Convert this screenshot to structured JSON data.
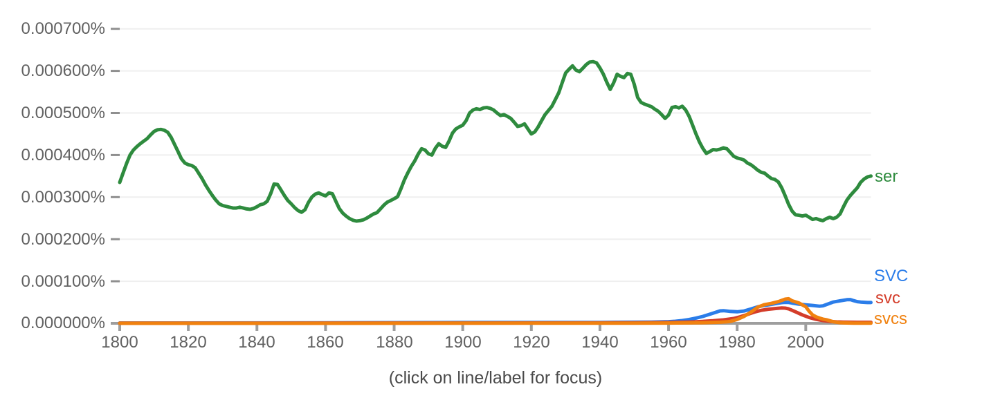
{
  "caption": "(click on line/label for focus)",
  "colors": {
    "background": "#ffffff",
    "gridline": "#efefef",
    "axis": "#9e9e9e",
    "tick_dash": "#8f8f8f",
    "axis_label": "#616161",
    "caption": "#4a4a4a"
  },
  "chart_data": {
    "type": "line",
    "title": "",
    "xlabel": "",
    "ylabel": "",
    "value_unit": "1e-6 percent (frequency %, axis shows 0.000000%–0.000700%)",
    "xlim": [
      1800,
      2019
    ],
    "ylim": [
      0,
      700
    ],
    "grid": true,
    "legend_position": "line-end-labels-right",
    "x_ticks": [
      "1800",
      "1820",
      "1840",
      "1860",
      "1880",
      "1900",
      "1920",
      "1940",
      "1960",
      "1980",
      "2000"
    ],
    "x_tick_years": [
      1800,
      1820,
      1840,
      1860,
      1880,
      1900,
      1920,
      1940,
      1960,
      1980,
      2000
    ],
    "y_ticks": [
      {
        "value": 700,
        "label": "0.000700%"
      },
      {
        "value": 600,
        "label": "0.000600%"
      },
      {
        "value": 500,
        "label": "0.000500%"
      },
      {
        "value": 400,
        "label": "0.000400%"
      },
      {
        "value": 300,
        "label": "0.000300%"
      },
      {
        "value": 200,
        "label": "0.000200%"
      },
      {
        "value": 100,
        "label": "0.000100%"
      },
      {
        "value": 0,
        "label": "0.000000%"
      }
    ],
    "series": [
      {
        "name": "ser",
        "label": "ser",
        "color": "#2e8b3e",
        "x_start": 1800,
        "x_step": 1,
        "values": [
          335,
          358,
          380,
          400,
          412,
          420,
          427,
          433,
          439,
          448,
          456,
          460,
          461,
          459,
          454,
          442,
          425,
          408,
          391,
          381,
          377,
          375,
          370,
          357,
          344,
          329,
          316,
          304,
          293,
          284,
          280,
          278,
          276,
          274,
          274,
          276,
          274,
          272,
          271,
          273,
          277,
          282,
          284,
          290,
          308,
          331,
          330,
          317,
          304,
          292,
          284,
          275,
          268,
          264,
          270,
          287,
          300,
          307,
          310,
          306,
          303,
          310,
          308,
          290,
          273,
          262,
          255,
          249,
          245,
          243,
          244,
          246,
          250,
          255,
          260,
          263,
          272,
          281,
          288,
          292,
          296,
          301,
          320,
          341,
          358,
          373,
          386,
          402,
          415,
          412,
          403,
          400,
          416,
          427,
          421,
          418,
          433,
          452,
          462,
          467,
          471,
          482,
          500,
          507,
          510,
          508,
          512,
          513,
          511,
          507,
          500,
          494,
          496,
          492,
          487,
          478,
          468,
          470,
          474,
          462,
          450,
          455,
          467,
          482,
          496,
          506,
          516,
          532,
          548,
          572,
          595,
          604,
          612,
          602,
          598,
          606,
          615,
          621,
          622,
          619,
          607,
          592,
          573,
          556,
          572,
          592,
          587,
          584,
          594,
          592,
          568,
          537,
          525,
          521,
          518,
          515,
          509,
          504,
          496,
          487,
          495,
          513,
          515,
          512,
          516,
          507,
          492,
          471,
          450,
          431,
          416,
          404,
          408,
          413,
          412,
          414,
          417,
          415,
          406,
          397,
          393,
          391,
          388,
          381,
          377,
          371,
          364,
          359,
          357,
          350,
          344,
          342,
          336,
          322,
          303,
          283,
          267,
          258,
          257,
          255,
          257,
          252,
          247,
          249,
          246,
          244,
          249,
          252,
          249,
          252,
          260,
          277,
          293,
          304,
          313,
          322,
          335,
          343,
          348,
          350
        ]
      },
      {
        "name": "SVC",
        "label": "SVC",
        "color": "#2b7de9",
        "points": [
          [
            1800,
            0.8
          ],
          [
            1840,
            1
          ],
          [
            1860,
            1.2
          ],
          [
            1880,
            1.6
          ],
          [
            1900,
            2
          ],
          [
            1920,
            2
          ],
          [
            1930,
            2.1
          ],
          [
            1940,
            2.2
          ],
          [
            1945,
            2.4
          ],
          [
            1950,
            2.6
          ],
          [
            1955,
            3
          ],
          [
            1958,
            3.5
          ],
          [
            1960,
            4
          ],
          [
            1962,
            5
          ],
          [
            1964,
            6.5
          ],
          [
            1966,
            9
          ],
          [
            1968,
            12.5
          ],
          [
            1970,
            16.5
          ],
          [
            1972,
            21.5
          ],
          [
            1974,
            27
          ],
          [
            1975,
            29.5
          ],
          [
            1976,
            30
          ],
          [
            1977,
            29.2
          ],
          [
            1978,
            28.2
          ],
          [
            1980,
            27.5
          ],
          [
            1982,
            29.2
          ],
          [
            1984,
            34
          ],
          [
            1986,
            39.2
          ],
          [
            1988,
            42.5
          ],
          [
            1990,
            45.2
          ],
          [
            1992,
            48
          ],
          [
            1993,
            49.2
          ],
          [
            1994,
            50
          ],
          [
            1995,
            49.6
          ],
          [
            1996,
            48.2
          ],
          [
            1998,
            45.5
          ],
          [
            2000,
            44
          ],
          [
            2002,
            42.5
          ],
          [
            2004,
            40.8
          ],
          [
            2005,
            41.5
          ],
          [
            2006,
            44.5
          ],
          [
            2008,
            50.5
          ],
          [
            2010,
            53.5
          ],
          [
            2012,
            56.2
          ],
          [
            2013,
            56.5
          ],
          [
            2014,
            53.8
          ],
          [
            2015,
            51.5
          ],
          [
            2016,
            50.5
          ],
          [
            2018,
            49.5
          ],
          [
            2019,
            49.5
          ]
        ]
      },
      {
        "name": "svc",
        "label": "svc",
        "color": "#d43d2a",
        "points": [
          [
            1800,
            0.4
          ],
          [
            1900,
            0.6
          ],
          [
            1940,
            1
          ],
          [
            1950,
            1.3
          ],
          [
            1955,
            1.6
          ],
          [
            1960,
            2
          ],
          [
            1965,
            3
          ],
          [
            1968,
            3.8
          ],
          [
            1970,
            4.6
          ],
          [
            1973,
            6
          ],
          [
            1976,
            8.2
          ],
          [
            1979,
            11.5
          ],
          [
            1981,
            15.8
          ],
          [
            1983,
            21.2
          ],
          [
            1985,
            26.8
          ],
          [
            1987,
            30.8
          ],
          [
            1989,
            33.5
          ],
          [
            1991,
            35.2
          ],
          [
            1993,
            36.5
          ],
          [
            1994,
            36.2
          ],
          [
            1995,
            34.5
          ],
          [
            1997,
            27.5
          ],
          [
            1999,
            20
          ],
          [
            2001,
            13.8
          ],
          [
            2003,
            9.6
          ],
          [
            2005,
            6.6
          ],
          [
            2007,
            4.6
          ],
          [
            2009,
            3.5
          ],
          [
            2011,
            3
          ],
          [
            2013,
            2.7
          ],
          [
            2015,
            2.5
          ],
          [
            2017,
            2.4
          ],
          [
            2019,
            2.4
          ]
        ]
      },
      {
        "name": "svcs",
        "label": "svcs",
        "color": "#f0810f",
        "points": [
          [
            1800,
            0.2
          ],
          [
            1900,
            0.3
          ],
          [
            1950,
            0.5
          ],
          [
            1960,
            0.7
          ],
          [
            1965,
            1
          ],
          [
            1970,
            1.5
          ],
          [
            1975,
            2.6
          ],
          [
            1977,
            3.6
          ],
          [
            1978,
            4.6
          ],
          [
            1980,
            9.2
          ],
          [
            1982,
            16.5
          ],
          [
            1984,
            26.5
          ],
          [
            1986,
            38.5
          ],
          [
            1988,
            44.5
          ],
          [
            1990,
            47.5
          ],
          [
            1992,
            51.5
          ],
          [
            1994,
            57.5
          ],
          [
            1995,
            58.5
          ],
          [
            1996,
            53.5
          ],
          [
            1998,
            48.5
          ],
          [
            2000,
            39.5
          ],
          [
            2001,
            28.5
          ],
          [
            2002,
            20
          ],
          [
            2003,
            15.5
          ],
          [
            2004,
            12.5
          ],
          [
            2005,
            10
          ],
          [
            2006,
            8.5
          ],
          [
            2008,
            4
          ],
          [
            2010,
            1.5
          ],
          [
            2012,
            0.8
          ],
          [
            2014,
            0.5
          ],
          [
            2016,
            0.4
          ],
          [
            2018,
            0.3
          ],
          [
            2019,
            0.3
          ]
        ]
      }
    ]
  }
}
